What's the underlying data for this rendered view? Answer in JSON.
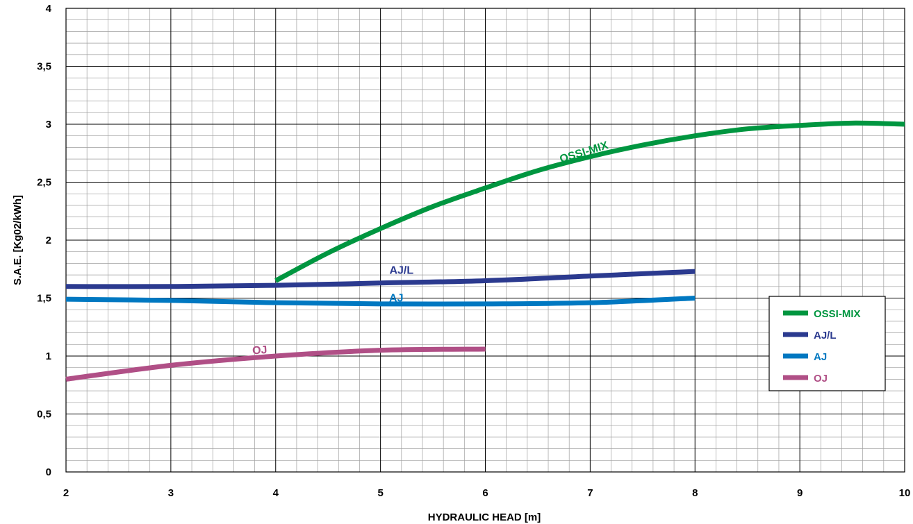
{
  "chart_data": {
    "type": "line",
    "title": "",
    "xlabel": "HYDRAULIC HEAD [m]",
    "ylabel": "S.A.E. [Kg02/kWh]",
    "xlim": [
      2,
      10
    ],
    "ylim": [
      0,
      4
    ],
    "x_ticks": [
      "2",
      "3",
      "4",
      "5",
      "6",
      "7",
      "8",
      "9",
      "10"
    ],
    "y_ticks": [
      "0",
      "0,5",
      "1",
      "1,5",
      "2",
      "2,5",
      "3",
      "3,5",
      "4"
    ],
    "grid": true,
    "legend_position": "right",
    "series": [
      {
        "name": "OSSI-MIX",
        "color": "#009640",
        "x": [
          4,
          4.5,
          5,
          5.5,
          6,
          6.5,
          7,
          7.5,
          8,
          8.5,
          9,
          9.5,
          10
        ],
        "y": [
          1.65,
          1.89,
          2.1,
          2.29,
          2.45,
          2.6,
          2.72,
          2.82,
          2.9,
          2.96,
          2.99,
          3.01,
          3.0
        ]
      },
      {
        "name": "AJ/L",
        "color": "#2b3a8f",
        "x": [
          2,
          3,
          4,
          5,
          6,
          7,
          8
        ],
        "y": [
          1.6,
          1.6,
          1.61,
          1.63,
          1.65,
          1.69,
          1.73
        ]
      },
      {
        "name": "AJ",
        "color": "#0078c1",
        "x": [
          2,
          3,
          4,
          5,
          6,
          7,
          8
        ],
        "y": [
          1.49,
          1.48,
          1.46,
          1.45,
          1.45,
          1.46,
          1.5
        ]
      },
      {
        "name": "OJ",
        "color": "#b04f86",
        "x": [
          2,
          3,
          4,
          5,
          6
        ],
        "y": [
          0.8,
          0.92,
          1.0,
          1.05,
          1.06
        ]
      }
    ]
  }
}
